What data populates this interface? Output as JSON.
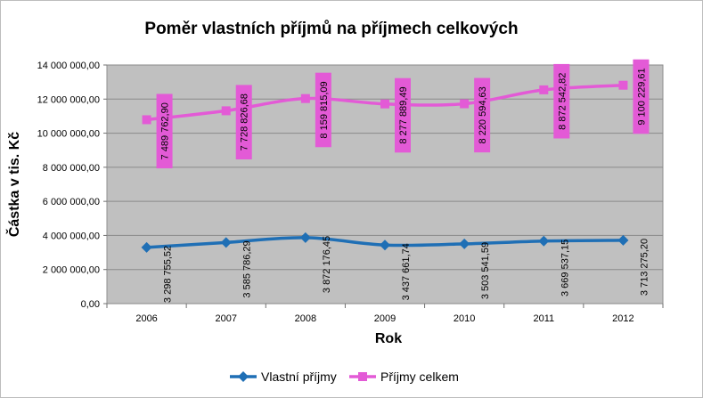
{
  "chart_data": {
    "type": "line",
    "title": "Poměr vlastních příjmů na příjmech celkových",
    "xlabel": "Rok",
    "ylabel": "Částka v tis. Kč",
    "categories": [
      "2006",
      "2007",
      "2008",
      "2009",
      "2010",
      "2011",
      "2012"
    ],
    "y_ticks": [
      "0,00",
      "2 000 000,00",
      "4 000 000,00",
      "6 000 000,00",
      "8 000 000,00",
      "10 000 000,00",
      "12 000 000,00",
      "14 000 000,00"
    ],
    "ylim": [
      0,
      14000000
    ],
    "y_tick_step": 2000000,
    "grid": "horizontal",
    "plot_background": "#c0c0c0",
    "legend_position": "bottom",
    "series": [
      {
        "name": "Vlastní příjmy",
        "color": "#1f6fb5",
        "marker": "diamond",
        "values": [
          3298755.52,
          3585786.29,
          3872176.45,
          3437661.74,
          3503541.59,
          3669537.15,
          3713275.2
        ],
        "labels": [
          "3 298 755,52",
          "3 585 786,29",
          "3 872 176,45",
          "3 437 661,74",
          "3 503 541,59",
          "3 669 537,15",
          "3 713 275,20"
        ]
      },
      {
        "name": "Příjmy celkem",
        "color": "#e35ad6",
        "marker": "square",
        "values": [
          10788518.42,
          11314612.97,
          12032000.54,
          11715550.93,
          11724136.22,
          12542079.97,
          12813504.81
        ],
        "labels": [
          "7 489 762,90",
          "7 728 826,68",
          "8 159 815,09",
          "8 277 889,49",
          "8 220 594,63",
          "8 872 542,82",
          "9 100 229,61"
        ]
      }
    ]
  }
}
